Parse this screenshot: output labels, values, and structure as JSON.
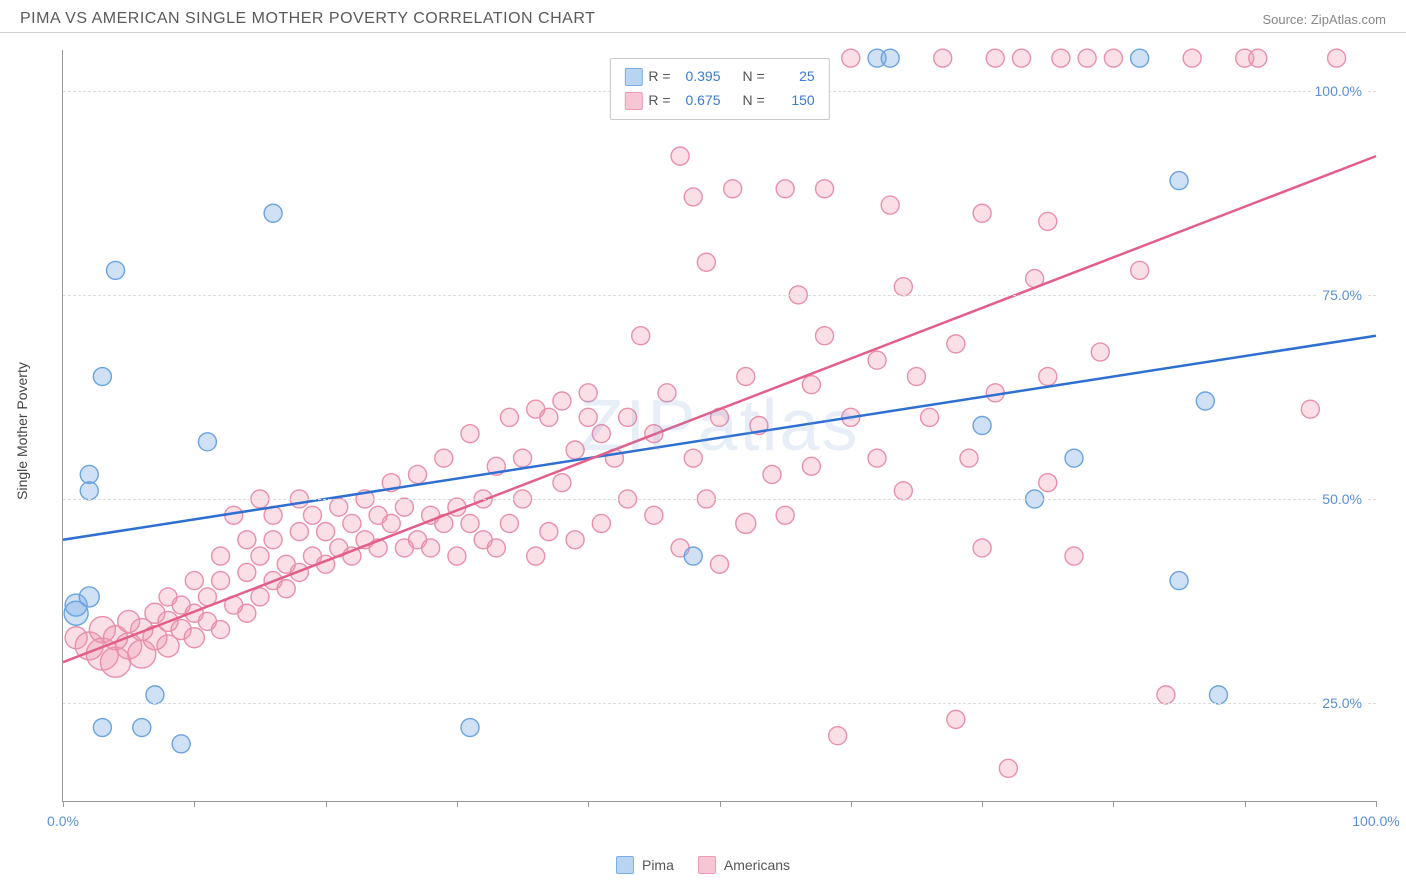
{
  "header": {
    "title": "PIMA VS AMERICAN SINGLE MOTHER POVERTY CORRELATION CHART",
    "source": "Source: ZipAtlas.com"
  },
  "chart": {
    "type": "scatter",
    "ylabel": "Single Mother Poverty",
    "watermark": "ZIPatlas",
    "xlim": [
      0,
      100
    ],
    "ylim": [
      13,
      105
    ],
    "xticks": [
      0,
      10,
      20,
      30,
      40,
      50,
      60,
      70,
      80,
      90,
      100
    ],
    "xtick_labels_shown": {
      "0": "0.0%",
      "100": "100.0%"
    },
    "yticks": [
      25,
      50,
      75,
      100
    ],
    "ytick_labels": {
      "25": "25.0%",
      "50": "50.0%",
      "75": "75.0%",
      "100": "100.0%"
    },
    "grid_color": "#dddddd",
    "axis_color": "#999999",
    "tick_label_color": "#5b8fd6",
    "series": {
      "pima": {
        "label": "Pima",
        "color_fill": "rgba(120,170,230,0.35)",
        "color_stroke": "#6aa3e0",
        "swatch_fill": "#b8d4f0",
        "swatch_border": "#7aaee5",
        "trend_color": "#2e6fd1",
        "R": "0.395",
        "N": "25",
        "marker_radius": 9,
        "trend": {
          "x1": 0,
          "y1": 45,
          "x2": 100,
          "y2": 70
        },
        "points": [
          [
            1,
            36,
            12
          ],
          [
            1,
            37,
            11
          ],
          [
            2,
            38,
            10
          ],
          [
            2,
            51,
            9
          ],
          [
            2,
            53,
            9
          ],
          [
            3,
            65,
            9
          ],
          [
            4,
            78,
            9
          ],
          [
            3,
            22,
            9
          ],
          [
            6,
            22,
            9
          ],
          [
            7,
            26,
            9
          ],
          [
            9,
            20,
            9
          ],
          [
            11,
            57,
            9
          ],
          [
            16,
            85,
            9
          ],
          [
            31,
            22,
            9
          ],
          [
            48,
            43,
            9
          ],
          [
            62,
            104,
            9
          ],
          [
            63,
            104,
            9
          ],
          [
            70,
            59,
            9
          ],
          [
            74,
            50,
            9
          ],
          [
            77,
            55,
            9
          ],
          [
            82,
            104,
            9
          ],
          [
            85,
            89,
            9
          ],
          [
            85,
            40,
            9
          ],
          [
            87,
            62,
            9
          ],
          [
            88,
            26,
            9
          ]
        ]
      },
      "americans": {
        "label": "Americans",
        "color_fill": "rgba(240,150,175,0.30)",
        "color_stroke": "#e98fac",
        "swatch_fill": "#f6c6d5",
        "swatch_border": "#ed9ab5",
        "trend_color": "#e35f8a",
        "R": "0.675",
        "N": "150",
        "marker_radius": 9,
        "trend": {
          "x1": 0,
          "y1": 30,
          "x2": 100,
          "y2": 92
        },
        "points": [
          [
            1,
            33,
            11
          ],
          [
            2,
            32,
            14
          ],
          [
            3,
            31,
            16
          ],
          [
            3,
            34,
            13
          ],
          [
            4,
            30,
            15
          ],
          [
            4,
            33,
            12
          ],
          [
            5,
            32,
            13
          ],
          [
            5,
            35,
            11
          ],
          [
            6,
            31,
            14
          ],
          [
            6,
            34,
            11
          ],
          [
            7,
            33,
            12
          ],
          [
            7,
            36,
            10
          ],
          [
            8,
            32,
            11
          ],
          [
            8,
            35,
            10
          ],
          [
            8,
            38,
            9
          ],
          [
            9,
            34,
            10
          ],
          [
            9,
            37,
            9
          ],
          [
            10,
            33,
            10
          ],
          [
            10,
            36,
            9
          ],
          [
            10,
            40,
            9
          ],
          [
            11,
            35,
            9
          ],
          [
            11,
            38,
            9
          ],
          [
            12,
            34,
            9
          ],
          [
            12,
            40,
            9
          ],
          [
            12,
            43,
            9
          ],
          [
            13,
            37,
            9
          ],
          [
            13,
            48,
            9
          ],
          [
            14,
            36,
            9
          ],
          [
            14,
            41,
            9
          ],
          [
            14,
            45,
            9
          ],
          [
            15,
            38,
            9
          ],
          [
            15,
            43,
            9
          ],
          [
            15,
            50,
            9
          ],
          [
            16,
            40,
            9
          ],
          [
            16,
            45,
            9
          ],
          [
            16,
            48,
            9
          ],
          [
            17,
            39,
            9
          ],
          [
            17,
            42,
            9
          ],
          [
            18,
            41,
            9
          ],
          [
            18,
            46,
            9
          ],
          [
            18,
            50,
            9
          ],
          [
            19,
            43,
            9
          ],
          [
            19,
            48,
            9
          ],
          [
            20,
            42,
            9
          ],
          [
            20,
            46,
            9
          ],
          [
            21,
            44,
            9
          ],
          [
            21,
            49,
            9
          ],
          [
            22,
            43,
            9
          ],
          [
            22,
            47,
            9
          ],
          [
            23,
            45,
            9
          ],
          [
            23,
            50,
            9
          ],
          [
            24,
            44,
            9
          ],
          [
            24,
            48,
            9
          ],
          [
            25,
            47,
            9
          ],
          [
            25,
            52,
            9
          ],
          [
            26,
            44,
            9
          ],
          [
            26,
            49,
            9
          ],
          [
            27,
            45,
            9
          ],
          [
            27,
            53,
            9
          ],
          [
            28,
            44,
            9
          ],
          [
            28,
            48,
            9
          ],
          [
            29,
            47,
            9
          ],
          [
            29,
            55,
            9
          ],
          [
            30,
            43,
            9
          ],
          [
            30,
            49,
            9
          ],
          [
            31,
            47,
            9
          ],
          [
            31,
            58,
            9
          ],
          [
            32,
            45,
            9
          ],
          [
            32,
            50,
            9
          ],
          [
            33,
            44,
            9
          ],
          [
            33,
            54,
            9
          ],
          [
            34,
            47,
            9
          ],
          [
            34,
            60,
            9
          ],
          [
            35,
            50,
            9
          ],
          [
            35,
            55,
            9
          ],
          [
            36,
            43,
            9
          ],
          [
            36,
            61,
            9
          ],
          [
            37,
            46,
            9
          ],
          [
            37,
            60,
            9
          ],
          [
            38,
            52,
            9
          ],
          [
            38,
            62,
            9
          ],
          [
            39,
            45,
            9
          ],
          [
            39,
            56,
            9
          ],
          [
            40,
            60,
            9
          ],
          [
            40,
            63,
            9
          ],
          [
            41,
            47,
            9
          ],
          [
            41,
            58,
            9
          ],
          [
            42,
            55,
            9
          ],
          [
            43,
            50,
            9
          ],
          [
            43,
            60,
            9
          ],
          [
            44,
            70,
            9
          ],
          [
            45,
            48,
            9
          ],
          [
            45,
            58,
            9
          ],
          [
            46,
            63,
            9
          ],
          [
            47,
            44,
            9
          ],
          [
            47,
            92,
            9
          ],
          [
            48,
            55,
            9
          ],
          [
            48,
            87,
            9
          ],
          [
            49,
            50,
            9
          ],
          [
            49,
            79,
            9
          ],
          [
            50,
            42,
            9
          ],
          [
            50,
            60,
            9
          ],
          [
            51,
            88,
            9
          ],
          [
            52,
            47,
            10
          ],
          [
            52,
            65,
            9
          ],
          [
            53,
            59,
            9
          ],
          [
            54,
            53,
            9
          ],
          [
            55,
            88,
            9
          ],
          [
            55,
            48,
            9
          ],
          [
            56,
            75,
            9
          ],
          [
            57,
            54,
            9
          ],
          [
            57,
            64,
            9
          ],
          [
            58,
            70,
            9
          ],
          [
            58,
            88,
            9
          ],
          [
            59,
            21,
            9
          ],
          [
            60,
            60,
            9
          ],
          [
            60,
            104,
            9
          ],
          [
            62,
            55,
            9
          ],
          [
            62,
            67,
            9
          ],
          [
            63,
            86,
            9
          ],
          [
            64,
            51,
            9
          ],
          [
            64,
            76,
            9
          ],
          [
            65,
            65,
            9
          ],
          [
            66,
            60,
            9
          ],
          [
            67,
            104,
            9
          ],
          [
            68,
            23,
            9
          ],
          [
            68,
            69,
            9
          ],
          [
            69,
            55,
            9
          ],
          [
            70,
            85,
            9
          ],
          [
            70,
            44,
            9
          ],
          [
            71,
            63,
            9
          ],
          [
            71,
            104,
            9
          ],
          [
            72,
            17,
            9
          ],
          [
            73,
            104,
            9
          ],
          [
            74,
            77,
            9
          ],
          [
            75,
            52,
            9
          ],
          [
            75,
            65,
            9
          ],
          [
            75,
            84,
            9
          ],
          [
            76,
            104,
            9
          ],
          [
            77,
            43,
            9
          ],
          [
            78,
            104,
            9
          ],
          [
            79,
            68,
            9
          ],
          [
            80,
            104,
            9
          ],
          [
            82,
            78,
            9
          ],
          [
            84,
            26,
            9
          ],
          [
            86,
            104,
            9
          ],
          [
            90,
            104,
            9
          ],
          [
            91,
            104,
            9
          ],
          [
            95,
            61,
            9
          ],
          [
            97,
            104,
            9
          ]
        ]
      }
    },
    "legend_top_labels": {
      "R": "R =",
      "N": "N ="
    },
    "legend_bottom": [
      "pima",
      "americans"
    ]
  }
}
